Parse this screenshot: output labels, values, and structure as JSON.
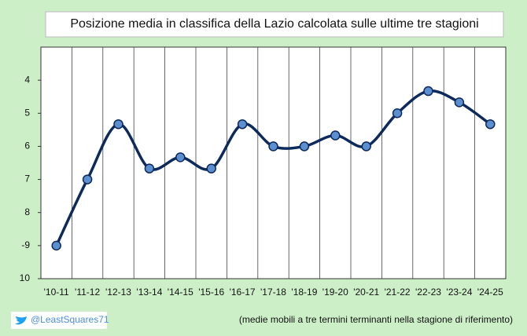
{
  "chart_data": {
    "type": "line",
    "title": "Posizione  media  in classifica  della  Lazio  calcolata  sulle  ultime  tre stagioni",
    "categories": [
      "'10-11",
      "'11-12",
      "'12-13",
      "'13-14",
      "'14-15",
      "'15-16",
      "'16-17",
      "'17-18",
      "'18-19",
      "'19-20",
      "'20-21",
      "'21-22",
      "'22-23",
      "'23-24",
      "'24-25"
    ],
    "values": [
      9,
      7,
      5.33,
      6.67,
      6.33,
      6.67,
      5.33,
      6,
      6,
      5.67,
      6,
      5,
      4.33,
      4.67,
      5.33
    ],
    "color": "#0d2a5c",
    "marker_color": "#5b8fd0",
    "ylim": [
      3,
      10
    ],
    "y_inverted": true,
    "yticks": [
      4,
      5,
      6,
      7,
      8,
      {
        "value": 9,
        "label": "-9"
      },
      10
    ],
    "x_grid": true,
    "twitter": "@LeastSquares71",
    "note": "(medie mobili a tre termini terminanti nella stagione di riferimento)"
  }
}
